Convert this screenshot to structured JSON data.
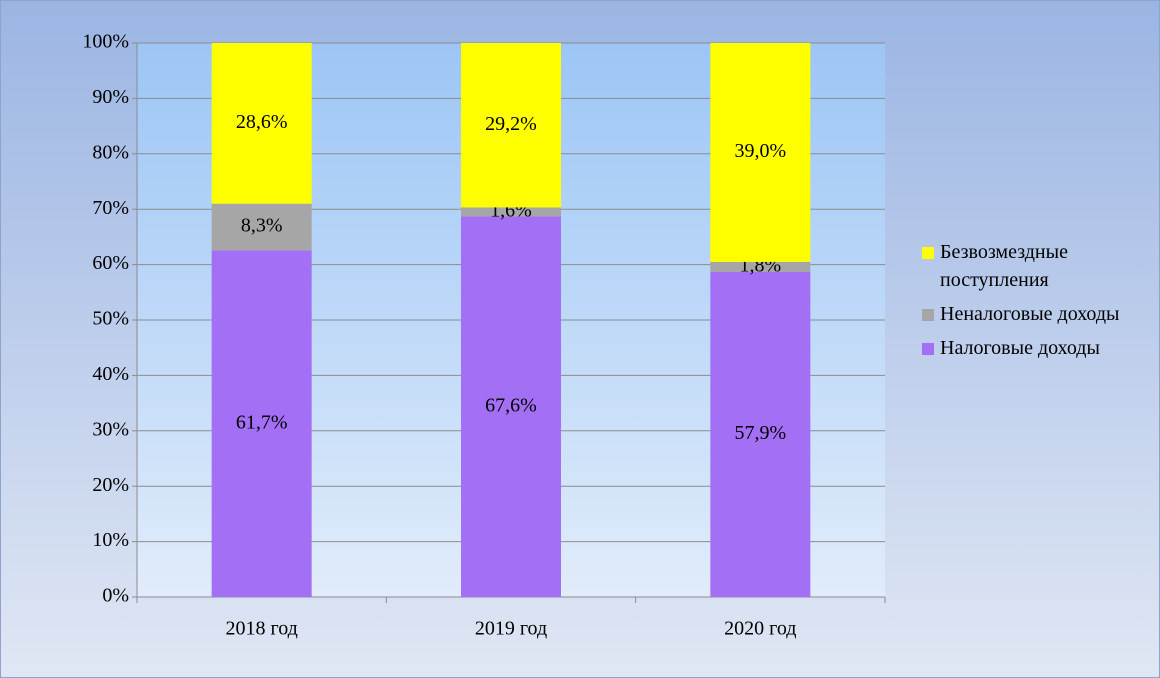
{
  "chart_data": {
    "type": "bar",
    "stacking": "percent",
    "categories": [
      "2018 год",
      "2019 год",
      "2020 год"
    ],
    "series": [
      {
        "name": "Налоговые доходы",
        "color": "#a36ff5",
        "values": [
          61.7,
          67.6,
          57.9
        ],
        "value_labels": [
          "61,7%",
          "67,6%",
          "57,9%"
        ]
      },
      {
        "name": "Неналоговые доходы",
        "color": "#a6a6a6",
        "values": [
          8.3,
          1.6,
          1.8
        ],
        "value_labels": [
          "8,3%",
          "1,6%",
          "1,8%"
        ]
      },
      {
        "name": "Безвозмездные поступления",
        "color": "#ffff00",
        "values": [
          28.6,
          29.2,
          39.0
        ],
        "value_labels": [
          "28,6%",
          "29,2%",
          "39,0%"
        ]
      }
    ],
    "ylim": [
      0,
      100
    ],
    "yticks": [
      {
        "value": 0,
        "label": "0%"
      },
      {
        "value": 10,
        "label": "10%"
      },
      {
        "value": 20,
        "label": "20%"
      },
      {
        "value": 30,
        "label": "30%"
      },
      {
        "value": 40,
        "label": "40%"
      },
      {
        "value": 50,
        "label": "50%"
      },
      {
        "value": 60,
        "label": "60%"
      },
      {
        "value": 70,
        "label": "70%"
      },
      {
        "value": 80,
        "label": "80%"
      },
      {
        "value": 90,
        "label": "90%"
      },
      {
        "value": 100,
        "label": "100%"
      }
    ],
    "grid": true,
    "legend": "right"
  }
}
